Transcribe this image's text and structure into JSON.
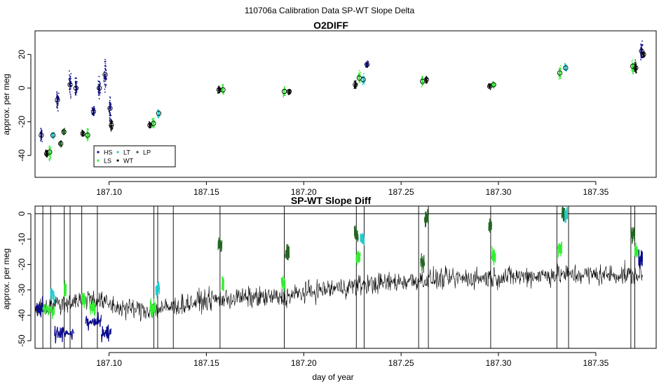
{
  "figure": {
    "suptitle": "110706a   Calibration Data SP-WT Slope Delta"
  },
  "colors": {
    "HS": "#0a0a8c",
    "LS": "#33ee33",
    "LT": "#22cccc",
    "WT": "#111111",
    "LP": "#226622",
    "line": "#000000"
  },
  "chart_data": [
    {
      "type": "scatter",
      "title": "O2DIFF",
      "xlabel": "",
      "ylabel": "approx. per meg",
      "xlim": [
        187.062,
        187.381
      ],
      "ylim": [
        -53,
        34
      ],
      "xticks": [
        187.1,
        187.15,
        187.2,
        187.25,
        187.3,
        187.35
      ],
      "xtick_labels": [
        "187.10",
        "187.15",
        "187.20",
        "187.25",
        "187.30",
        "187.35"
      ],
      "yticks": [
        -40,
        -20,
        0,
        20
      ],
      "ytick_labels": [
        "-40",
        "-20",
        "0",
        "20"
      ],
      "legend": {
        "placement": "bottom-left",
        "entries": [
          {
            "label": "HS",
            "key": "HS"
          },
          {
            "label": "LS",
            "key": "LS"
          },
          {
            "label": "LT",
            "key": "LT"
          },
          {
            "label": "WT",
            "key": "WT"
          },
          {
            "label": "LP",
            "key": "LP"
          }
        ]
      },
      "clusters": [
        {
          "series": "HS",
          "x": 187.0652,
          "y": -28.0,
          "spread": 4
        },
        {
          "series": "WT",
          "x": 187.068,
          "y": -39.0,
          "spread": 2
        },
        {
          "series": "LS",
          "x": 187.0695,
          "y": -38.0,
          "spread": 4
        },
        {
          "series": "LT",
          "x": 187.0712,
          "y": -28.0,
          "spread": 2
        },
        {
          "series": "HS",
          "x": 187.0735,
          "y": -7.0,
          "spread": 6
        },
        {
          "series": "LP",
          "x": 187.0752,
          "y": -33.0,
          "spread": 2
        },
        {
          "series": "LP",
          "x": 187.0768,
          "y": -26.0,
          "spread": 2
        },
        {
          "series": "HS",
          "x": 187.08,
          "y": 2.0,
          "spread": 7
        },
        {
          "series": "HS",
          "x": 187.083,
          "y": 0.0,
          "spread": 6
        },
        {
          "series": "WT",
          "x": 187.0865,
          "y": -27.0,
          "spread": 2
        },
        {
          "series": "LS",
          "x": 187.089,
          "y": -28.0,
          "spread": 4
        },
        {
          "series": "HS",
          "x": 187.092,
          "y": -14.0,
          "spread": 3
        },
        {
          "series": "HS",
          "x": 187.095,
          "y": 0.0,
          "spread": 6
        },
        {
          "series": "HS",
          "x": 187.098,
          "y": 8.0,
          "spread": 9
        },
        {
          "series": "HS",
          "x": 187.1005,
          "y": -12.0,
          "spread": 9
        },
        {
          "series": "WT",
          "x": 187.1012,
          "y": -22.0,
          "spread": 4
        },
        {
          "series": "WT",
          "x": 187.121,
          "y": -22.0,
          "spread": 2
        },
        {
          "series": "LS",
          "x": 187.1228,
          "y": -21.0,
          "spread": 3
        },
        {
          "series": "LT",
          "x": 187.1255,
          "y": -15.0,
          "spread": 3
        },
        {
          "series": "WT",
          "x": 187.1565,
          "y": -1.0,
          "spread": 2
        },
        {
          "series": "LS",
          "x": 187.1585,
          "y": -1.0,
          "spread": 3
        },
        {
          "series": "LS",
          "x": 187.19,
          "y": -2.0,
          "spread": 3
        },
        {
          "series": "WT",
          "x": 187.1925,
          "y": -2.0,
          "spread": 2
        },
        {
          "series": "WT",
          "x": 187.2265,
          "y": 2.0,
          "spread": 3
        },
        {
          "series": "LS",
          "x": 187.2285,
          "y": 6.0,
          "spread": 4
        },
        {
          "series": "LT",
          "x": 187.2305,
          "y": 5.0,
          "spread": 3
        },
        {
          "series": "HS",
          "x": 187.2325,
          "y": 14.0,
          "spread": 2
        },
        {
          "series": "LS",
          "x": 187.261,
          "y": 4.0,
          "spread": 3
        },
        {
          "series": "WT",
          "x": 187.263,
          "y": 5.0,
          "spread": 2
        },
        {
          "series": "WT",
          "x": 187.2955,
          "y": 1.0,
          "spread": 2
        },
        {
          "series": "LS",
          "x": 187.2975,
          "y": 2.0,
          "spread": 2
        },
        {
          "series": "LS",
          "x": 187.3315,
          "y": 9.0,
          "spread": 4
        },
        {
          "series": "LT",
          "x": 187.3345,
          "y": 12.0,
          "spread": 3
        },
        {
          "series": "LS",
          "x": 187.369,
          "y": 13.0,
          "spread": 5
        },
        {
          "series": "WT",
          "x": 187.3705,
          "y": 12.0,
          "spread": 4
        },
        {
          "series": "HS",
          "x": 187.3735,
          "y": 22.0,
          "spread": 5
        },
        {
          "series": "WT",
          "x": 187.3745,
          "y": 20.0,
          "spread": 2
        }
      ]
    },
    {
      "type": "line",
      "title": "SP-WT Slope Diff",
      "xlabel": "day of year",
      "ylabel": "approx. per meg",
      "xlim": [
        187.062,
        187.381
      ],
      "ylim": [
        -53,
        3
      ],
      "xticks": [
        187.1,
        187.15,
        187.2,
        187.25,
        187.3,
        187.35
      ],
      "xtick_labels": [
        "187.10",
        "187.15",
        "187.20",
        "187.25",
        "187.30",
        "187.35"
      ],
      "yticks": [
        -50,
        -40,
        -30,
        -20,
        -10,
        0
      ],
      "ytick_labels": [
        "-50",
        "-40",
        "-30",
        "-20",
        "-10",
        "0"
      ],
      "hline_y": 0,
      "baseline": {
        "x": [
          187.062,
          187.078,
          187.09,
          187.105,
          187.12,
          187.13,
          187.15,
          187.17,
          187.19,
          187.2,
          187.23,
          187.26,
          187.3,
          187.33,
          187.36,
          187.374
        ],
        "y": [
          -37,
          -35,
          -33,
          -37,
          -38,
          -37,
          -34,
          -33,
          -33,
          -31,
          -28,
          -26,
          -25,
          -24,
          -24,
          -24
        ]
      },
      "spikes_x": [
        187.066,
        187.07,
        187.077,
        187.08,
        187.086,
        187.094,
        187.123,
        187.125,
        187.133,
        187.157,
        187.19,
        187.227,
        187.231,
        187.259,
        187.264,
        187.296,
        187.33,
        187.336,
        187.368,
        187.37
      ],
      "colored_segments": [
        {
          "series": "HS",
          "x0": 187.0625,
          "x1": 187.066,
          "y": -37
        },
        {
          "series": "LS",
          "x0": 187.066,
          "x1": 187.072,
          "y": -38
        },
        {
          "series": "LT",
          "x0": 187.07,
          "x1": 187.072,
          "y": -32
        },
        {
          "series": "HS",
          "x0": 187.072,
          "x1": 187.082,
          "y": -47
        },
        {
          "series": "LS",
          "x0": 187.077,
          "x1": 187.078,
          "y": -30
        },
        {
          "series": "LS",
          "x0": 187.086,
          "x1": 187.088,
          "y": -34
        },
        {
          "series": "HS",
          "x0": 187.088,
          "x1": 187.096,
          "y": -42
        },
        {
          "series": "LS",
          "x0": 187.09,
          "x1": 187.093,
          "y": -37
        },
        {
          "series": "HS",
          "x0": 187.096,
          "x1": 187.101,
          "y": -47
        },
        {
          "series": "LS",
          "x0": 187.121,
          "x1": 187.124,
          "y": -37
        },
        {
          "series": "LT",
          "x0": 187.124,
          "x1": 187.126,
          "y": -30
        },
        {
          "series": "LP",
          "x0": 187.156,
          "x1": 187.158,
          "y": -12
        },
        {
          "series": "LS",
          "x0": 187.158,
          "x1": 187.159,
          "y": -28
        },
        {
          "series": "LS",
          "x0": 187.1885,
          "x1": 187.1905,
          "y": -27
        },
        {
          "series": "LP",
          "x0": 187.1905,
          "x1": 187.1925,
          "y": -15
        },
        {
          "series": "LP",
          "x0": 187.226,
          "x1": 187.228,
          "y": -8
        },
        {
          "series": "LS",
          "x0": 187.227,
          "x1": 187.229,
          "y": -17
        },
        {
          "series": "LT",
          "x0": 187.229,
          "x1": 187.231,
          "y": -10
        },
        {
          "series": "LP",
          "x0": 187.26,
          "x1": 187.262,
          "y": -19
        },
        {
          "series": "LP",
          "x0": 187.262,
          "x1": 187.264,
          "y": -2
        },
        {
          "series": "LP",
          "x0": 187.295,
          "x1": 187.2965,
          "y": -5
        },
        {
          "series": "LS",
          "x0": 187.2965,
          "x1": 187.2985,
          "y": -17
        },
        {
          "series": "LS",
          "x0": 187.3305,
          "x1": 187.3325,
          "y": -14
        },
        {
          "series": "LP",
          "x0": 187.3325,
          "x1": 187.334,
          "y": 0
        },
        {
          "series": "LT",
          "x0": 187.334,
          "x1": 187.3355,
          "y": 0
        },
        {
          "series": "LP",
          "x0": 187.368,
          "x1": 187.37,
          "y": -8
        },
        {
          "series": "LS",
          "x0": 187.37,
          "x1": 187.372,
          "y": -15
        },
        {
          "series": "HS",
          "x0": 187.372,
          "x1": 187.374,
          "y": -18
        }
      ]
    }
  ]
}
